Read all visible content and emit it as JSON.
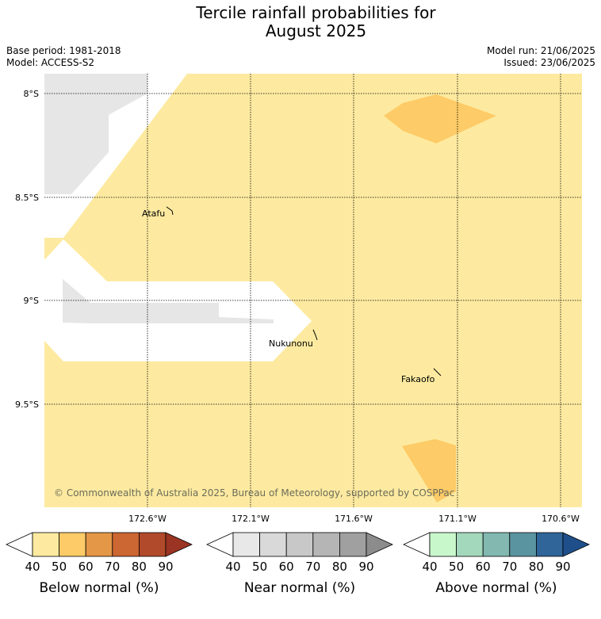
{
  "title_line1": "Tercile rainfall probabilities for",
  "title_line2": "August 2025",
  "base_period": "Base period: 1981-2018",
  "model": "Model: ACCESS-S2",
  "model_run": "Model run: 21/06/2025",
  "issued": "Issued: 23/06/2025",
  "map": {
    "lat_labels": [
      "8°S",
      "8.5°S",
      "9°S",
      "9.5°S"
    ],
    "lon_labels": [
      "172.6°W",
      "172.1°W",
      "171.6°W",
      "171.1°W",
      "170.6°W"
    ],
    "places": [
      "Atafu",
      "Nukunonu",
      "Fakaofo"
    ],
    "copyright": "© Commonwealth of Australia 2025, Bureau of Meteorology, supported by COSPPac",
    "colors": {
      "below_40_50": "#fdeaa0",
      "below_50_60": "#fdcb67",
      "no_data_grey": "#e6e6e6",
      "white": "#ffffff"
    }
  },
  "colorbars": [
    {
      "label": "Below normal (%)",
      "ticks": [
        "40",
        "50",
        "60",
        "70",
        "80",
        "90"
      ],
      "colors": [
        "#fdeaa0",
        "#fdcb67",
        "#e49747",
        "#cc6632",
        "#b04a2a",
        "#9b3423"
      ]
    },
    {
      "label": "Near normal (%)",
      "ticks": [
        "40",
        "50",
        "60",
        "70",
        "80",
        "90"
      ],
      "colors": [
        "#e8e8e8",
        "#d9d9d9",
        "#c8c8c8",
        "#b5b5b5",
        "#a0a0a0",
        "#8c8c8c"
      ]
    },
    {
      "label": "Above normal (%)",
      "ticks": [
        "40",
        "50",
        "60",
        "70",
        "80",
        "90"
      ],
      "colors": [
        "#c9f7cc",
        "#a4d8bc",
        "#82b8b0",
        "#5a94a0",
        "#2f6598",
        "#1f4f8a"
      ]
    }
  ]
}
